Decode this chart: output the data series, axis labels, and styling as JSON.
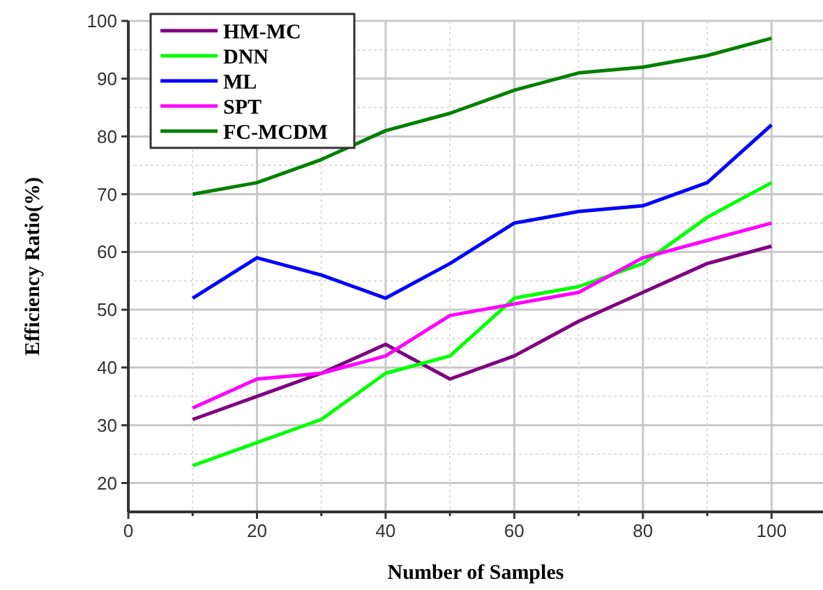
{
  "chart_data": {
    "type": "line",
    "xlabel": "Number of Samples",
    "ylabel": "Efficiency Ratio(%)",
    "x": [
      10,
      20,
      30,
      40,
      50,
      60,
      70,
      80,
      90,
      100
    ],
    "xlim": [
      0,
      108
    ],
    "xticks": [
      0,
      {
        "value": 10,
        "label": null
      },
      20,
      {
        "value": 30,
        "label": null
      },
      40,
      {
        "value": 50,
        "label": null
      },
      60,
      {
        "value": 70,
        "label": null
      },
      80,
      {
        "value": 90,
        "label": null
      },
      100
    ],
    "ylim": [
      15,
      100
    ],
    "yticks": [
      20,
      30,
      40,
      50,
      60,
      70,
      80,
      90,
      100
    ],
    "grid": true,
    "legend": "top left",
    "marker": "none",
    "line_style": "solid",
    "series": [
      {
        "name": "HM-MC",
        "color": "#800080",
        "values": [
          31,
          35,
          39,
          44,
          38,
          42,
          48,
          53,
          58,
          61
        ]
      },
      {
        "name": "DNN",
        "color": "#00ff00",
        "values": [
          23,
          27,
          31,
          39,
          42,
          52,
          54,
          58,
          66,
          72
        ]
      },
      {
        "name": "ML",
        "color": "#0000ff",
        "values": [
          52,
          59,
          56,
          52,
          58,
          65,
          67,
          68,
          72,
          82
        ]
      },
      {
        "name": "SPT",
        "color": "#ff00ff",
        "values": [
          33,
          38,
          39,
          42,
          49,
          51,
          53,
          59,
          62,
          65
        ]
      },
      {
        "name": "FC-MCDM",
        "color": "#008000",
        "values": [
          70,
          72,
          76,
          81,
          84,
          88,
          91,
          92,
          94,
          97
        ]
      }
    ]
  }
}
